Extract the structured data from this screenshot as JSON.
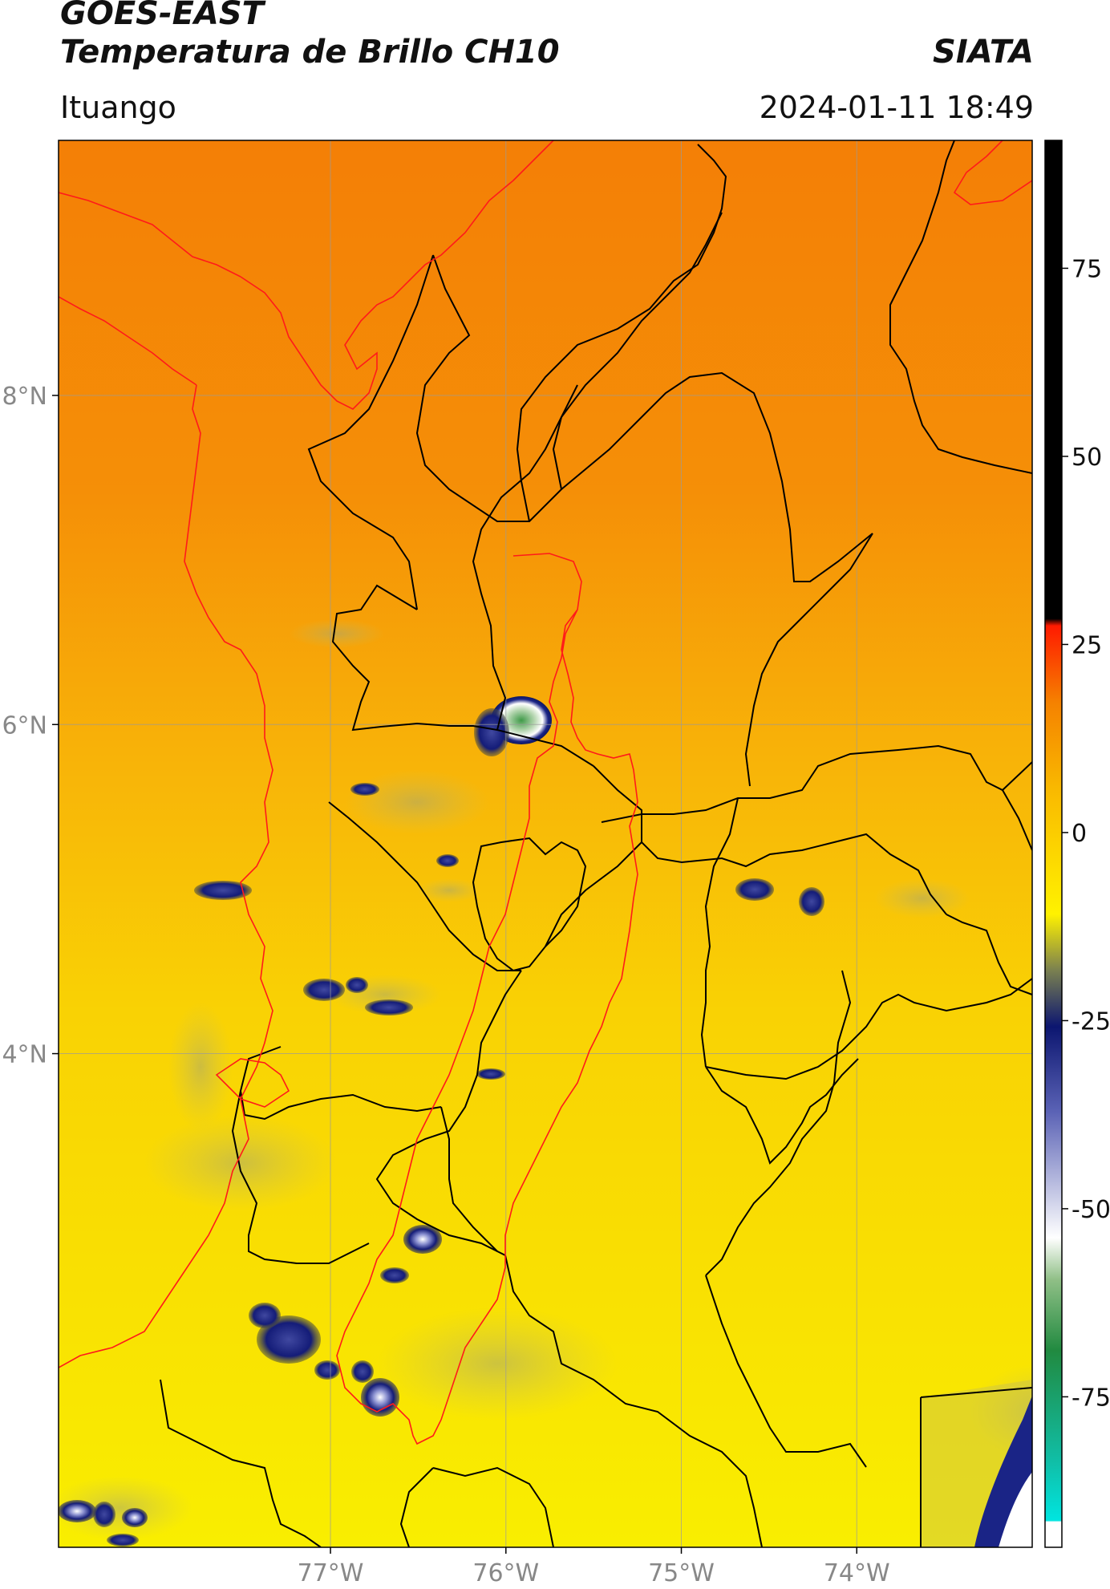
{
  "header": {
    "satellite": "GOES-EAST",
    "product": "Temperatura de Brillo CH10",
    "organization": "SIATA",
    "location": "Ituango",
    "timestamp": "2024-01-11 18:49"
  },
  "map": {
    "lon_range": [
      -78.55,
      -73.0
    ],
    "lat_range": [
      1.0,
      9.55
    ],
    "lat_ticks": [
      {
        "value": 8,
        "label": "8°N"
      },
      {
        "value": 6,
        "label": "6°N"
      },
      {
        "value": 4,
        "label": "4°N"
      }
    ],
    "lon_ticks": [
      {
        "value": -77,
        "label": "77°W"
      },
      {
        "value": -76,
        "label": "76°W"
      },
      {
        "value": -75,
        "label": "75°W"
      },
      {
        "value": -74,
        "label": "74°W"
      }
    ],
    "gridlines": true,
    "colors": {
      "background_north": "#f58a06",
      "background_south": "#f8ea00",
      "admin_border": "#000000",
      "coast_basin": "#ff1a1a"
    }
  },
  "colorbar": {
    "range": [
      -95,
      92
    ],
    "ticks": [
      {
        "value": 75,
        "label": "75"
      },
      {
        "value": 50,
        "label": "50"
      },
      {
        "value": 25,
        "label": "25"
      },
      {
        "value": 0,
        "label": "0"
      },
      {
        "value": -25,
        "label": "-25"
      },
      {
        "value": -50,
        "label": "-50"
      },
      {
        "value": -75,
        "label": "-75"
      }
    ]
  }
}
